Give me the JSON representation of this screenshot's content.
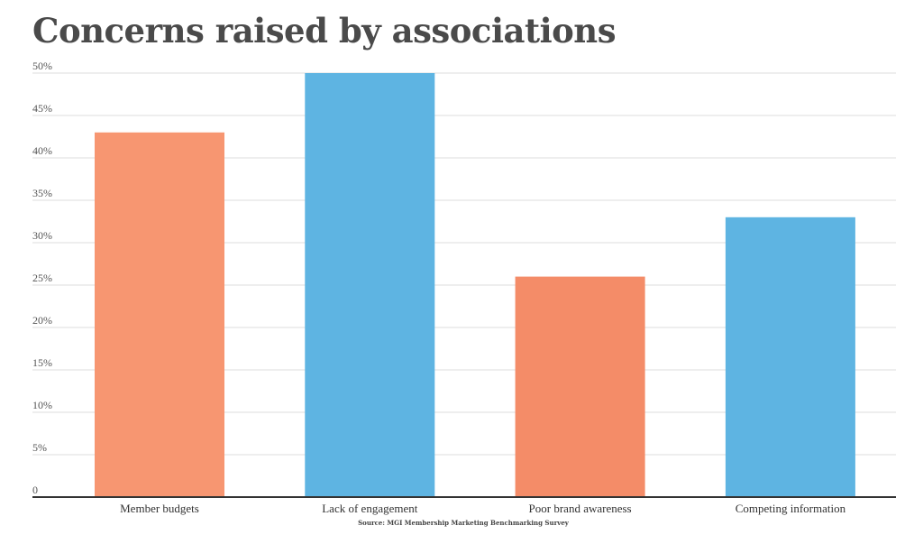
{
  "chart_data": {
    "type": "bar",
    "title": "Concerns raised by associations",
    "categories": [
      "Member budgets",
      "Lack of engagement",
      "Poor brand awareness",
      "Competing information"
    ],
    "values": [
      43,
      50,
      26,
      33
    ],
    "bar_colors": [
      "#f79671",
      "#5eb4e2",
      "#f48c68",
      "#5eb4e2"
    ],
    "ylim": [
      0,
      50
    ],
    "yticks": [
      0,
      5,
      10,
      15,
      20,
      25,
      30,
      35,
      40,
      45,
      50
    ],
    "ytick_labels": [
      "0",
      "5%",
      "10%",
      "15%",
      "20%",
      "25%",
      "30%",
      "35%",
      "40%",
      "45%",
      "50%"
    ],
    "xlabel": "",
    "ylabel": "",
    "grid": true,
    "source": "Source: MGI Membership Marketing Benchmarking Survey"
  }
}
